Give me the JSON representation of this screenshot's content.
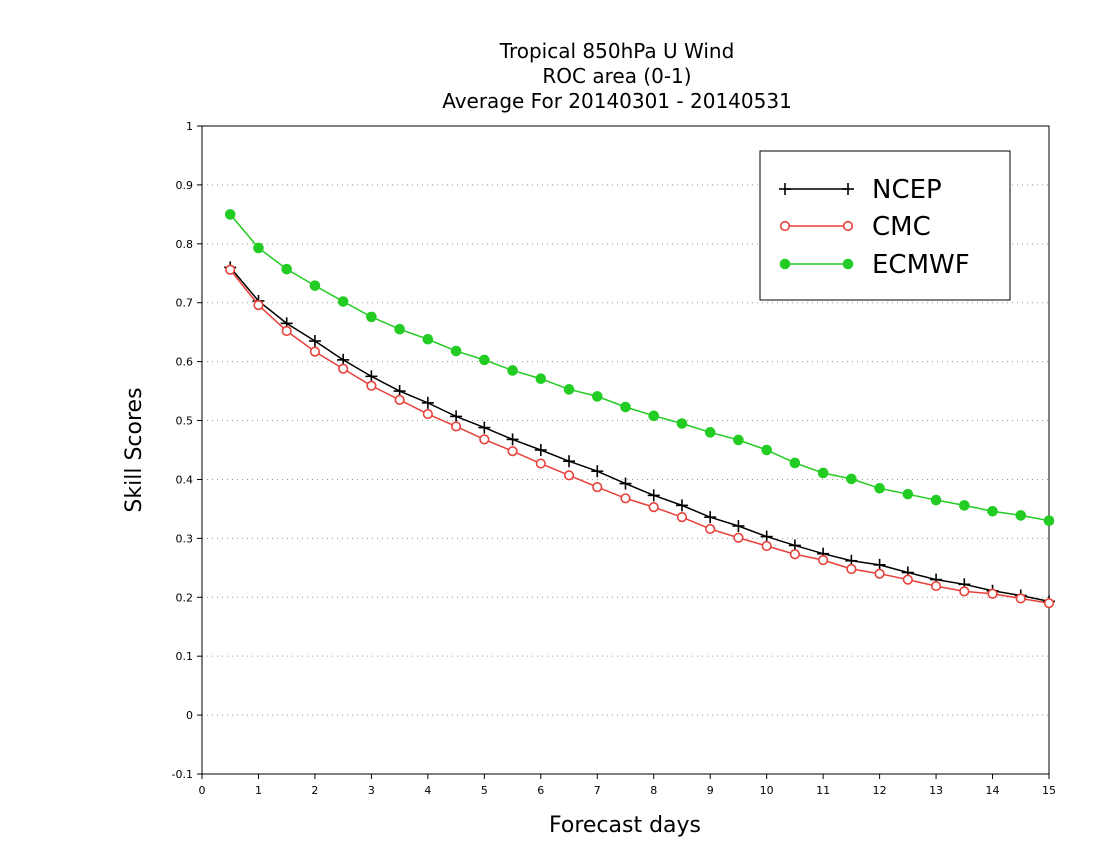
{
  "chart_data": {
    "type": "line",
    "title_lines": [
      "Tropical 850hPa U Wind",
      "ROC area (0-1)",
      "Average For 20140301 - 20140531"
    ],
    "xlabel": "Forecast days",
    "ylabel": "Skill Scores",
    "xlim": [
      0,
      15
    ],
    "ylim": [
      -0.1,
      1
    ],
    "xticks": [
      "0",
      "1",
      "2",
      "3",
      "4",
      "5",
      "6",
      "7",
      "8",
      "9",
      "10",
      "11",
      "12",
      "13",
      "14",
      "15"
    ],
    "yticks": [
      "-0.1",
      "0",
      "0.1",
      "0.2",
      "0.3",
      "0.4",
      "0.5",
      "0.6",
      "0.7",
      "0.8",
      "0.9",
      "1"
    ],
    "grid": "horizontal dotted",
    "legend_position": "top-right",
    "x": [
      0.5,
      1,
      1.5,
      2,
      2.5,
      3,
      3.5,
      4,
      4.5,
      5,
      5.5,
      6,
      6.5,
      7,
      7.5,
      8,
      8.5,
      9,
      9.5,
      10,
      10.5,
      11,
      11.5,
      12,
      12.5,
      13,
      13.5,
      14,
      14.5,
      15
    ],
    "series": [
      {
        "name": "NCEP",
        "color": "#000000",
        "marker": "plus",
        "values": [
          0.76,
          0.703,
          0.665,
          0.635,
          0.603,
          0.575,
          0.55,
          0.53,
          0.507,
          0.488,
          0.468,
          0.45,
          0.431,
          0.414,
          0.393,
          0.373,
          0.356,
          0.336,
          0.321,
          0.303,
          0.288,
          0.274,
          0.262,
          0.255,
          0.242,
          0.23,
          0.222,
          0.211,
          0.203,
          0.193
        ]
      },
      {
        "name": "CMC",
        "color": "#e8403a",
        "marker": "open-circle",
        "values": [
          0.756,
          0.696,
          0.652,
          0.617,
          0.588,
          0.559,
          0.535,
          0.511,
          0.49,
          0.468,
          0.448,
          0.427,
          0.407,
          0.387,
          0.368,
          0.353,
          0.336,
          0.316,
          0.301,
          0.287,
          0.273,
          0.263,
          0.248,
          0.24,
          0.23,
          0.219,
          0.21,
          0.206,
          0.198,
          0.19
        ]
      },
      {
        "name": "ECMWF",
        "color": "#22cc22",
        "marker": "filled-circle",
        "values": [
          0.85,
          0.793,
          0.757,
          0.729,
          0.702,
          0.676,
          0.655,
          0.638,
          0.618,
          0.603,
          0.585,
          0.571,
          0.553,
          0.541,
          0.523,
          0.508,
          0.495,
          0.48,
          0.467,
          0.45,
          0.428,
          0.411,
          0.401,
          0.385,
          0.375,
          0.365,
          0.356,
          0.346,
          0.339,
          0.33
        ]
      }
    ]
  }
}
